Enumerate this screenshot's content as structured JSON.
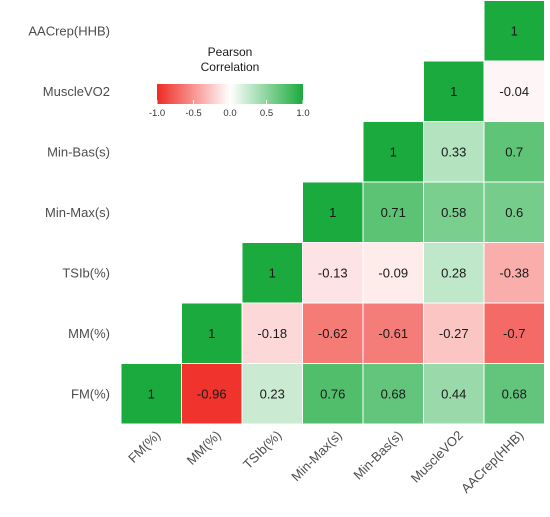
{
  "chart_data": {
    "type": "heatmap",
    "title": "",
    "variables": [
      "FM(%)",
      "MM(%)",
      "TSIb(%)",
      "Min-Max(s)",
      "Min-Bas(s)",
      "MuscleVO2",
      "AACrep(HHB)"
    ],
    "cells": [
      {
        "x": "FM(%)",
        "y": "FM(%)",
        "value": 1,
        "label": "1"
      },
      {
        "x": "MM(%)",
        "y": "FM(%)",
        "value": -0.96,
        "label": "-0.96"
      },
      {
        "x": "TSIb(%)",
        "y": "FM(%)",
        "value": 0.23,
        "label": "0.23"
      },
      {
        "x": "Min-Max(s)",
        "y": "FM(%)",
        "value": 0.76,
        "label": "0.76"
      },
      {
        "x": "Min-Bas(s)",
        "y": "FM(%)",
        "value": 0.68,
        "label": "0.68"
      },
      {
        "x": "MuscleVO2",
        "y": "FM(%)",
        "value": 0.44,
        "label": "0.44"
      },
      {
        "x": "AACrep(HHB)",
        "y": "FM(%)",
        "value": 0.68,
        "label": "0.68"
      },
      {
        "x": "MM(%)",
        "y": "MM(%)",
        "value": 1,
        "label": "1"
      },
      {
        "x": "TSIb(%)",
        "y": "MM(%)",
        "value": -0.18,
        "label": "-0.18"
      },
      {
        "x": "Min-Max(s)",
        "y": "MM(%)",
        "value": -0.62,
        "label": "-0.62"
      },
      {
        "x": "Min-Bas(s)",
        "y": "MM(%)",
        "value": -0.61,
        "label": "-0.61"
      },
      {
        "x": "MuscleVO2",
        "y": "MM(%)",
        "value": -0.27,
        "label": "-0.27"
      },
      {
        "x": "AACrep(HHB)",
        "y": "MM(%)",
        "value": -0.7,
        "label": "-0.7"
      },
      {
        "x": "TSIb(%)",
        "y": "TSIb(%)",
        "value": 1,
        "label": "1"
      },
      {
        "x": "Min-Max(s)",
        "y": "TSIb(%)",
        "value": -0.13,
        "label": "-0.13"
      },
      {
        "x": "Min-Bas(s)",
        "y": "TSIb(%)",
        "value": -0.09,
        "label": "-0.09"
      },
      {
        "x": "MuscleVO2",
        "y": "TSIb(%)",
        "value": 0.28,
        "label": "0.28"
      },
      {
        "x": "AACrep(HHB)",
        "y": "TSIb(%)",
        "value": -0.38,
        "label": "-0.38"
      },
      {
        "x": "Min-Max(s)",
        "y": "Min-Max(s)",
        "value": 1,
        "label": "1"
      },
      {
        "x": "Min-Bas(s)",
        "y": "Min-Max(s)",
        "value": 0.71,
        "label": "0.71"
      },
      {
        "x": "MuscleVO2",
        "y": "Min-Max(s)",
        "value": 0.58,
        "label": "0.58"
      },
      {
        "x": "AACrep(HHB)",
        "y": "Min-Max(s)",
        "value": 0.6,
        "label": "0.6"
      },
      {
        "x": "Min-Bas(s)",
        "y": "Min-Bas(s)",
        "value": 1,
        "label": "1"
      },
      {
        "x": "MuscleVO2",
        "y": "Min-Bas(s)",
        "value": 0.33,
        "label": "0.33"
      },
      {
        "x": "AACrep(HHB)",
        "y": "Min-Bas(s)",
        "value": 0.7,
        "label": "0.7"
      },
      {
        "x": "MuscleVO2",
        "y": "MuscleVO2",
        "value": 1,
        "label": "1"
      },
      {
        "x": "AACrep(HHB)",
        "y": "MuscleVO2",
        "value": -0.04,
        "label": "-0.04"
      },
      {
        "x": "AACrep(HHB)",
        "y": "AACrep(HHB)",
        "value": 1,
        "label": "1"
      }
    ],
    "legend": {
      "title_lines": [
        "Pearson",
        "Correlation"
      ],
      "ticks": [
        -1.0,
        -0.5,
        0.0,
        0.5,
        1.0
      ],
      "tick_labels": [
        "-1.0",
        "-0.5",
        "0.0",
        "0.5",
        "1.0"
      ],
      "range": [
        -1,
        1
      ],
      "placement": "top-left"
    },
    "colors": {
      "low": "#ef2a24",
      "mid": "#ffffff",
      "high": "#1aaa3d"
    },
    "grid": false
  }
}
